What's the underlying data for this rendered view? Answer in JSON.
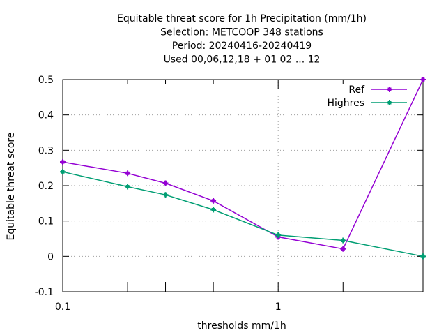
{
  "chart_data": {
    "type": "line",
    "title_lines": [
      "Equitable threat score  for 1h Precipitation (mm/1h)",
      "Selection: METCOOP    348 stations",
      "Period: 20240416-20240419",
      "Used  00,06,12,18 + 01 02 ... 12"
    ],
    "xlabel": "thresholds mm/1h",
    "ylabel": "Equitable threat score",
    "x_scale": "log",
    "xlim": [
      0.1,
      4.7
    ],
    "ylim": [
      -0.1,
      0.5
    ],
    "x_tick_labels": [
      {
        "value": 0.1,
        "label": "0.1"
      },
      {
        "value": 1,
        "label": "1"
      }
    ],
    "x_minor_ticks": [
      0.2,
      0.3,
      0.5,
      2
    ],
    "y_ticks": [
      {
        "value": -0.1,
        "label": "-0.1"
      },
      {
        "value": 0,
        "label": "0"
      },
      {
        "value": 0.1,
        "label": "0.1"
      },
      {
        "value": 0.2,
        "label": "0.2"
      },
      {
        "value": 0.3,
        "label": "0.3"
      },
      {
        "value": 0.4,
        "label": "0.4"
      },
      {
        "value": 0.5,
        "label": "0.5"
      }
    ],
    "grid": true,
    "legend_position": "top-right",
    "series": [
      {
        "name": "Ref",
        "color": "#9400d3",
        "x": [
          0.1,
          0.2,
          0.3,
          0.5,
          1,
          2,
          4.7
        ],
        "y": [
          0.267,
          0.235,
          0.207,
          0.157,
          0.055,
          0.021,
          0.5
        ]
      },
      {
        "name": "Highres",
        "color": "#009e73",
        "x": [
          0.1,
          0.2,
          0.3,
          0.5,
          1,
          2,
          4.7
        ],
        "y": [
          0.239,
          0.197,
          0.174,
          0.132,
          0.06,
          0.045,
          0.0
        ]
      }
    ]
  }
}
